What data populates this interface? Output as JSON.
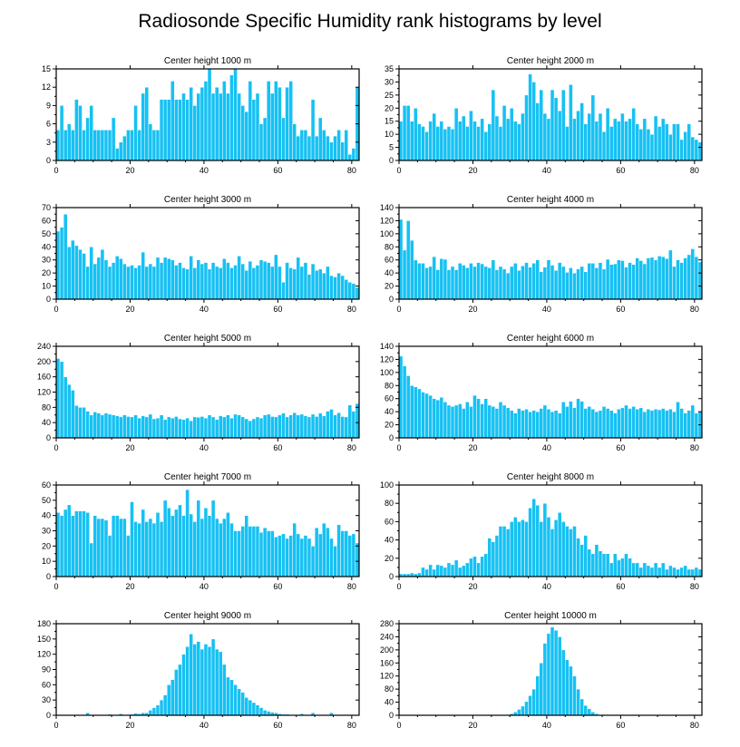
{
  "title": "Radiosonde Specific Humidity rank histograms by level",
  "colors": {
    "bar": "#16c1f3",
    "bar_edge": "#ffffff",
    "axis": "#000000"
  },
  "chart_data": [
    {
      "type": "bar",
      "title": "Center height 1000 m",
      "xlim": [
        0,
        82
      ],
      "ylim": [
        0,
        15
      ],
      "xticks": [
        0,
        20,
        40,
        60,
        80
      ],
      "yticks": [
        0,
        3,
        6,
        9,
        12,
        15
      ],
      "values": [
        5,
        9,
        5,
        6,
        5,
        10,
        9,
        5,
        7,
        9,
        5,
        5,
        5,
        5,
        5,
        7,
        2,
        3,
        4,
        5,
        5,
        9,
        5,
        11,
        12,
        6,
        5,
        5,
        10,
        10,
        10,
        13,
        10,
        10,
        11,
        10,
        12,
        9,
        11,
        12,
        13,
        15,
        11,
        12,
        11,
        13,
        11,
        14,
        15,
        11,
        9,
        8,
        13,
        10,
        11,
        6,
        7,
        13,
        11,
        13,
        12,
        7,
        12,
        13,
        6,
        4,
        5,
        5,
        4,
        10,
        4,
        7,
        5,
        4,
        3,
        4,
        5,
        3,
        5,
        1,
        2,
        12
      ]
    },
    {
      "type": "bar",
      "title": "Center height 2000 m",
      "xlim": [
        0,
        82
      ],
      "ylim": [
        0,
        35
      ],
      "xticks": [
        0,
        20,
        40,
        60,
        80
      ],
      "yticks": [
        0,
        5,
        10,
        15,
        20,
        25,
        30,
        35
      ],
      "values": [
        15,
        21,
        21,
        15,
        20,
        14,
        13,
        11,
        15,
        18,
        13,
        15,
        12,
        13,
        12,
        20,
        15,
        17,
        13,
        19,
        15,
        13,
        16,
        11,
        14,
        27,
        17,
        13,
        21,
        16,
        20,
        15,
        14,
        18,
        25,
        33,
        30,
        22,
        27,
        18,
        16,
        27,
        24,
        19,
        27,
        13,
        29,
        16,
        19,
        22,
        14,
        18,
        25,
        15,
        18,
        11,
        20,
        13,
        16,
        15,
        18,
        15,
        16,
        20,
        14,
        12,
        16,
        12,
        10,
        17,
        13,
        16,
        14,
        10,
        14,
        14,
        8,
        11,
        14,
        9,
        8,
        7
      ]
    },
    {
      "type": "bar",
      "title": "Center height 3000 m",
      "xlim": [
        0,
        82
      ],
      "ylim": [
        0,
        70
      ],
      "xticks": [
        0,
        20,
        40,
        60,
        80
      ],
      "yticks": [
        0,
        10,
        20,
        30,
        40,
        50,
        60,
        70
      ],
      "values": [
        52,
        55,
        65,
        40,
        45,
        41,
        38,
        35,
        25,
        40,
        27,
        32,
        38,
        30,
        25,
        28,
        33,
        31,
        27,
        25,
        26,
        24,
        26,
        36,
        25,
        27,
        25,
        32,
        28,
        32,
        31,
        30,
        26,
        28,
        24,
        23,
        33,
        24,
        30,
        27,
        28,
        23,
        28,
        25,
        24,
        31,
        28,
        24,
        26,
        33,
        27,
        22,
        29,
        24,
        26,
        30,
        29,
        28,
        25,
        34,
        25,
        13,
        28,
        24,
        23,
        32,
        25,
        28,
        19,
        27,
        22,
        23,
        20,
        25,
        18,
        17,
        20,
        18,
        15,
        13,
        12,
        9
      ]
    },
    {
      "type": "bar",
      "title": "Center height 4000 m",
      "xlim": [
        0,
        82
      ],
      "ylim": [
        0,
        140
      ],
      "xticks": [
        0,
        20,
        40,
        60,
        80
      ],
      "yticks": [
        0,
        20,
        40,
        60,
        80,
        100,
        120,
        140
      ],
      "values": [
        122,
        75,
        120,
        90,
        60,
        55,
        55,
        48,
        50,
        65,
        45,
        62,
        61,
        45,
        50,
        45,
        55,
        52,
        48,
        55,
        50,
        56,
        54,
        50,
        48,
        60,
        45,
        50,
        46,
        40,
        50,
        55,
        44,
        51,
        56,
        49,
        55,
        60,
        42,
        49,
        60,
        52,
        44,
        56,
        50,
        41,
        48,
        40,
        46,
        50,
        42,
        55,
        55,
        48,
        56,
        46,
        61,
        53,
        54,
        60,
        59,
        49,
        56,
        53,
        63,
        59,
        54,
        63,
        64,
        60,
        66,
        65,
        62,
        75,
        50,
        60,
        56,
        63,
        68,
        77,
        65,
        57
      ]
    },
    {
      "type": "bar",
      "title": "Center height 5000 m",
      "xlim": [
        0,
        82
      ],
      "ylim": [
        0,
        240
      ],
      "xticks": [
        0,
        20,
        40,
        60,
        80
      ],
      "yticks": [
        0,
        40,
        80,
        120,
        160,
        200,
        240
      ],
      "values": [
        208,
        200,
        160,
        140,
        125,
        85,
        80,
        80,
        70,
        60,
        68,
        65,
        60,
        65,
        62,
        60,
        58,
        55,
        60,
        56,
        55,
        60,
        52,
        58,
        55,
        62,
        50,
        52,
        60,
        48,
        55,
        52,
        56,
        50,
        48,
        52,
        45,
        55,
        54,
        56,
        52,
        60,
        55,
        48,
        58,
        55,
        60,
        52,
        62,
        60,
        55,
        50,
        45,
        50,
        55,
        52,
        60,
        62,
        56,
        55,
        60,
        65,
        55,
        60,
        66,
        60,
        62,
        58,
        55,
        62,
        56,
        65,
        58,
        70,
        75,
        60,
        66,
        56,
        55,
        86,
        70,
        90
      ]
    },
    {
      "type": "bar",
      "title": "Center height 6000 m",
      "xlim": [
        0,
        82
      ],
      "ylim": [
        0,
        140
      ],
      "xticks": [
        0,
        20,
        40,
        60,
        80
      ],
      "yticks": [
        0,
        20,
        40,
        60,
        80,
        100,
        120,
        140
      ],
      "values": [
        125,
        110,
        95,
        80,
        78,
        75,
        70,
        68,
        65,
        60,
        58,
        62,
        55,
        50,
        48,
        50,
        52,
        45,
        55,
        48,
        65,
        60,
        52,
        60,
        50,
        48,
        45,
        55,
        50,
        46,
        42,
        38,
        45,
        42,
        44,
        40,
        42,
        40,
        45,
        50,
        44,
        40,
        42,
        38,
        55,
        48,
        56,
        46,
        60,
        56,
        45,
        48,
        44,
        40,
        42,
        48,
        45,
        42,
        38,
        44,
        46,
        50,
        45,
        48,
        44,
        46,
        40,
        44,
        42,
        44,
        43,
        45,
        42,
        44,
        40,
        55,
        45,
        38,
        42,
        50,
        38,
        40
      ]
    },
    {
      "type": "bar",
      "title": "Center height 7000 m",
      "xlim": [
        0,
        82
      ],
      "ylim": [
        0,
        60
      ],
      "xticks": [
        0,
        20,
        40,
        60,
        80
      ],
      "yticks": [
        0,
        10,
        20,
        30,
        40,
        50,
        60
      ],
      "values": [
        42,
        40,
        44,
        47,
        40,
        43,
        43,
        43,
        42,
        22,
        40,
        38,
        38,
        37,
        27,
        40,
        40,
        38,
        38,
        27,
        49,
        36,
        35,
        44,
        36,
        38,
        35,
        42,
        36,
        50,
        45,
        40,
        44,
        47,
        40,
        57,
        41,
        36,
        50,
        38,
        45,
        40,
        50,
        38,
        35,
        38,
        42,
        35,
        30,
        30,
        33,
        40,
        33,
        33,
        33,
        29,
        32,
        30,
        30,
        26,
        27,
        28,
        25,
        27,
        35,
        28,
        25,
        27,
        25,
        20,
        32,
        28,
        35,
        32,
        25,
        20,
        34,
        30,
        30,
        27,
        28,
        22
      ]
    },
    {
      "type": "bar",
      "title": "Center height 8000 m",
      "xlim": [
        0,
        82
      ],
      "ylim": [
        0,
        100
      ],
      "xticks": [
        0,
        20,
        40,
        60,
        80
      ],
      "yticks": [
        0,
        20,
        40,
        60,
        80,
        100
      ],
      "values": [
        3,
        3,
        3,
        4,
        3,
        4,
        10,
        8,
        13,
        8,
        13,
        12,
        10,
        15,
        13,
        18,
        10,
        12,
        15,
        20,
        22,
        15,
        22,
        25,
        42,
        38,
        45,
        55,
        55,
        52,
        60,
        65,
        60,
        62,
        60,
        75,
        85,
        78,
        60,
        80,
        65,
        52,
        62,
        70,
        60,
        55,
        52,
        55,
        42,
        35,
        45,
        30,
        25,
        35,
        28,
        25,
        25,
        15,
        25,
        18,
        20,
        25,
        20,
        15,
        15,
        10,
        15,
        12,
        10,
        15,
        10,
        15,
        8,
        12,
        10,
        8,
        10,
        12,
        8,
        8,
        10,
        8
      ]
    },
    {
      "type": "bar",
      "title": "Center height 9000 m",
      "xlim": [
        0,
        82
      ],
      "ylim": [
        0,
        180
      ],
      "xticks": [
        0,
        20,
        40,
        60,
        80
      ],
      "yticks": [
        0,
        30,
        60,
        90,
        120,
        150,
        180
      ],
      "values": [
        0,
        0,
        0,
        0,
        0,
        0,
        0,
        0,
        5,
        0,
        0,
        0,
        0,
        0,
        2,
        0,
        0,
        3,
        0,
        0,
        2,
        4,
        3,
        5,
        5,
        10,
        15,
        20,
        30,
        40,
        60,
        70,
        90,
        100,
        120,
        135,
        160,
        140,
        145,
        130,
        140,
        135,
        150,
        130,
        125,
        100,
        75,
        70,
        60,
        52,
        45,
        35,
        30,
        25,
        20,
        15,
        10,
        8,
        6,
        5,
        3,
        2,
        2,
        0,
        0,
        0,
        3,
        0,
        0,
        5,
        0,
        0,
        0,
        0,
        5,
        0,
        0,
        0,
        0,
        0,
        0,
        0
      ]
    },
    {
      "type": "bar",
      "title": "Center height 10000 m",
      "xlim": [
        0,
        82
      ],
      "ylim": [
        0,
        280
      ],
      "xticks": [
        0,
        20,
        40,
        60,
        80
      ],
      "yticks": [
        0,
        40,
        80,
        120,
        160,
        200,
        240,
        280
      ],
      "values": [
        0,
        0,
        0,
        0,
        0,
        0,
        0,
        0,
        0,
        0,
        0,
        0,
        0,
        0,
        0,
        0,
        0,
        0,
        0,
        0,
        0,
        0,
        0,
        0,
        0,
        0,
        0,
        0,
        0,
        0,
        5,
        10,
        18,
        28,
        42,
        60,
        80,
        120,
        160,
        220,
        250,
        270,
        260,
        240,
        200,
        170,
        150,
        120,
        80,
        50,
        30,
        20,
        10,
        5,
        2,
        0,
        0,
        0,
        0,
        0,
        0,
        0,
        0,
        0,
        0,
        0,
        0,
        0,
        0,
        0,
        0,
        0,
        0,
        0,
        0,
        0,
        0,
        0,
        0,
        0,
        0,
        0
      ]
    }
  ]
}
